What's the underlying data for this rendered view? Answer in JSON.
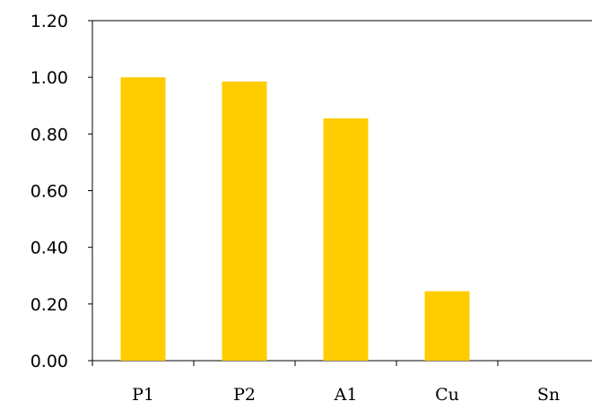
{
  "chart_data": {
    "type": "bar",
    "categories": [
      "P1",
      "P2",
      "A1",
      "Cu",
      "Sn"
    ],
    "values": [
      1.0,
      0.985,
      0.855,
      0.245,
      0.0
    ],
    "ylim": [
      0.0,
      1.2
    ],
    "yticks": [
      "0.00",
      "0.20",
      "0.40",
      "0.60",
      "0.80",
      "1.00",
      "1.20"
    ],
    "title": "",
    "xlabel": "",
    "ylabel": "",
    "grid": false,
    "colors": {
      "bar": "#FFCC00",
      "axis": "#000000",
      "frame": "#000000"
    }
  }
}
